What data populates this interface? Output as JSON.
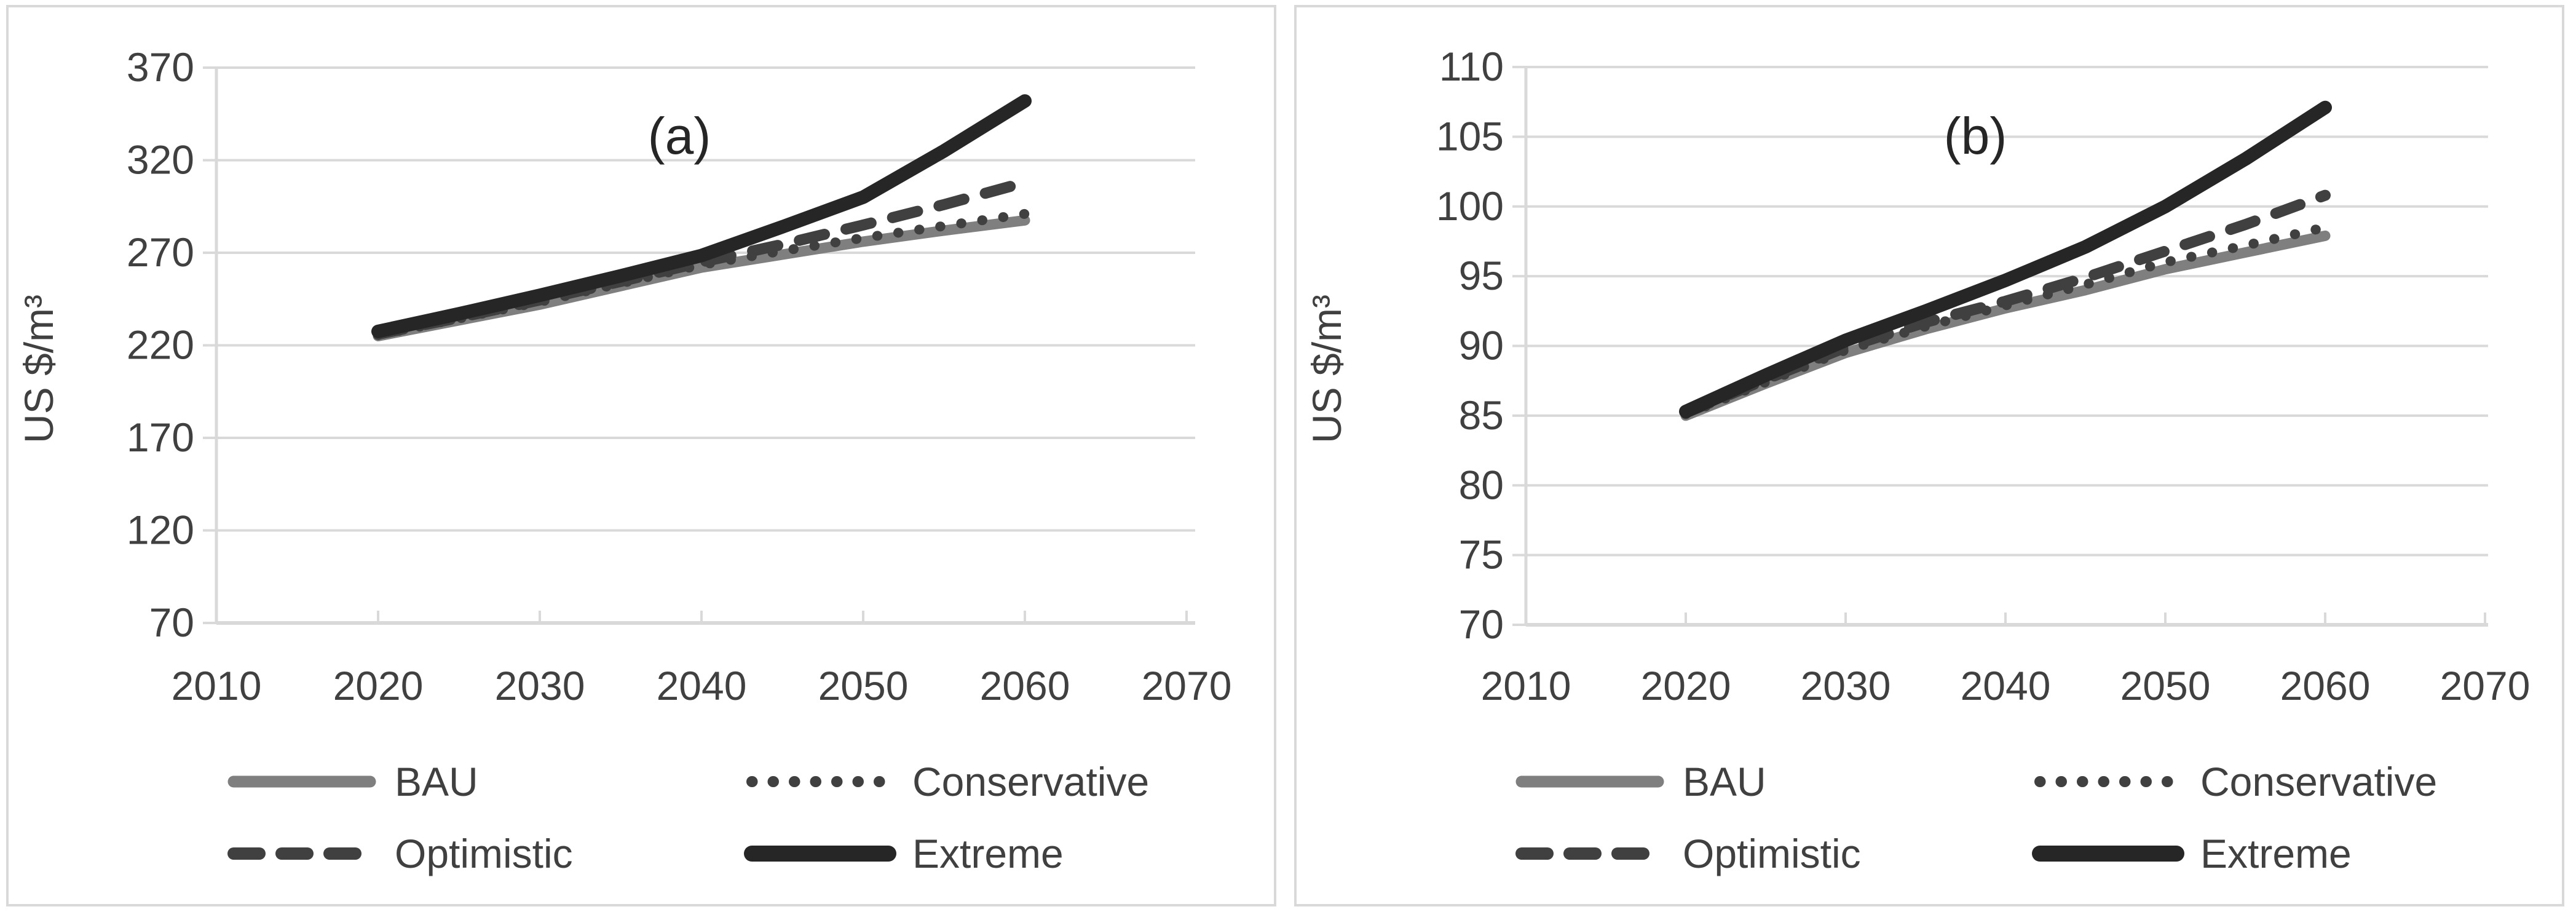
{
  "colors": {
    "background": "#ffffff",
    "panel_border": "#d9d9d9",
    "gridline": "#d9d9d9",
    "axis_line": "#d9d9d9",
    "tick_text": "#404040",
    "panel_title_text": "#262626"
  },
  "legend_labels": [
    "BAU",
    "Conservative",
    "Optimistic",
    "Extreme"
  ],
  "chart_data": [
    {
      "type": "line",
      "title": "(a)",
      "xlabel": "",
      "ylabel": "US $/m³",
      "xlim": [
        2010,
        2070
      ],
      "ylim": [
        70,
        370
      ],
      "x_ticks": [
        2010,
        2020,
        2030,
        2040,
        2050,
        2060,
        2070
      ],
      "y_ticks": [
        370,
        320,
        270,
        220,
        170,
        120,
        70
      ],
      "grid": "horizontal",
      "legend_position": "bottom",
      "x": [
        2020,
        2025,
        2030,
        2035,
        2040,
        2045,
        2050,
        2055,
        2060
      ],
      "series": [
        {
          "name": "BAU",
          "style": "solid",
          "color": "#7f7f7f",
          "width": 17,
          "values": [
            225,
            233.5,
            242,
            252,
            262,
            269,
            276,
            282,
            287.5
          ]
        },
        {
          "name": "Conservative",
          "style": "dotted",
          "color": "#404040",
          "width": 16,
          "values": [
            225.5,
            234.5,
            243.5,
            253.5,
            263.5,
            271,
            278,
            284.5,
            291
          ]
        },
        {
          "name": "Optimistic",
          "style": "dashed",
          "color": "#404040",
          "width": 18,
          "values": [
            226,
            235,
            244.5,
            254.5,
            265,
            274.5,
            285,
            296,
            308
          ]
        },
        {
          "name": "Extreme",
          "style": "solid",
          "color": "#262626",
          "width": 22,
          "values": [
            227.5,
            237,
            247,
            257.5,
            268.5,
            284,
            300,
            325,
            352
          ]
        }
      ]
    },
    {
      "type": "line",
      "title": "(b)",
      "xlabel": "",
      "ylabel": "US $/m³",
      "xlim": [
        2010,
        2070
      ],
      "ylim": [
        70,
        110
      ],
      "x_ticks": [
        2010,
        2020,
        2030,
        2040,
        2050,
        2060,
        2070
      ],
      "y_ticks": [
        110,
        105,
        100,
        95,
        90,
        85,
        80,
        75,
        70
      ],
      "grid": "horizontal",
      "legend_position": "bottom",
      "x": [
        2020,
        2025,
        2030,
        2035,
        2040,
        2045,
        2050,
        2055,
        2060
      ],
      "series": [
        {
          "name": "BAU",
          "style": "solid",
          "color": "#7f7f7f",
          "width": 17,
          "values": [
            85.0,
            87.3,
            89.5,
            91.2,
            92.7,
            94.0,
            95.5,
            96.7,
            97.9
          ]
        },
        {
          "name": "Conservative",
          "style": "dotted",
          "color": "#404040",
          "width": 16,
          "values": [
            85.1,
            87.4,
            89.7,
            91.4,
            92.9,
            94.4,
            96.0,
            97.2,
            98.5
          ]
        },
        {
          "name": "Optimistic",
          "style": "dashed",
          "color": "#404040",
          "width": 18,
          "values": [
            85.2,
            87.6,
            89.9,
            91.7,
            93.2,
            94.9,
            96.8,
            98.7,
            100.8
          ]
        },
        {
          "name": "Extreme",
          "style": "solid",
          "color": "#262626",
          "width": 22,
          "values": [
            85.3,
            87.9,
            90.4,
            92.5,
            94.7,
            97.1,
            100.0,
            103.4,
            107.1
          ]
        }
      ]
    }
  ]
}
